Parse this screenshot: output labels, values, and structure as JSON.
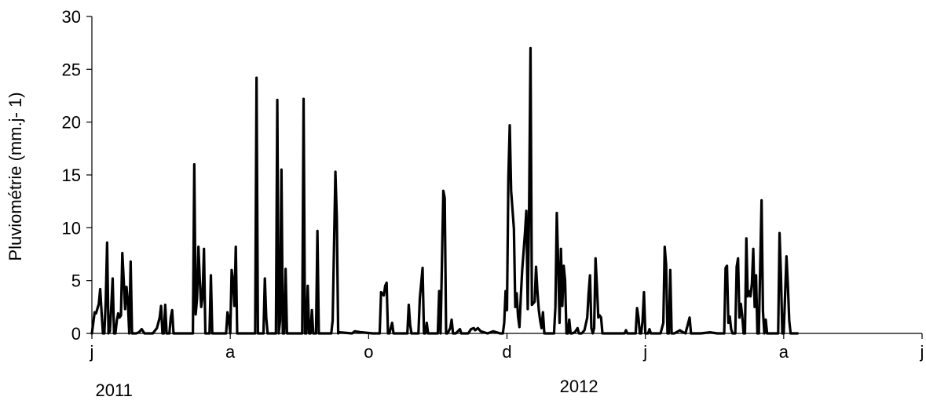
{
  "chart_data": {
    "type": "line",
    "title": "",
    "ylabel": "Pluviométrie (mm.j- 1)",
    "xlabel": "",
    "ylim": [
      0,
      30
    ],
    "yticks": [
      0,
      5,
      10,
      15,
      20,
      25,
      30
    ],
    "xlim": [
      0,
      600
    ],
    "x_ticks": [
      {
        "x": 0,
        "label": "j"
      },
      {
        "x": 100,
        "label": "a"
      },
      {
        "x": 200,
        "label": "o"
      },
      {
        "x": 300,
        "label": "d"
      },
      {
        "x": 400,
        "label": "j"
      },
      {
        "x": 500,
        "label": "a"
      },
      {
        "x": 600,
        "label": "j"
      }
    ],
    "year_labels": [
      {
        "x": 16,
        "label": "2011"
      },
      {
        "x": 352,
        "label": "2012"
      }
    ],
    "grid": false,
    "legend": "none",
    "line_color": "#000000",
    "series": [
      {
        "points": [
          [
            0,
            0
          ],
          [
            2,
            2
          ],
          [
            3,
            1.9
          ],
          [
            5,
            2.8
          ],
          [
            6,
            4.2
          ],
          [
            7,
            2
          ],
          [
            8,
            0
          ],
          [
            9,
            0
          ],
          [
            10,
            3
          ],
          [
            11,
            8.6
          ],
          [
            12,
            0
          ],
          [
            13,
            0.2
          ],
          [
            14,
            2.5
          ],
          [
            15,
            5.2
          ],
          [
            16,
            0
          ],
          [
            17,
            0
          ],
          [
            18,
            1.2
          ],
          [
            19,
            1.9
          ],
          [
            20,
            1.5
          ],
          [
            21,
            1.7
          ],
          [
            22,
            7.6
          ],
          [
            23,
            5
          ],
          [
            24,
            2.3
          ],
          [
            25,
            4.4
          ],
          [
            26,
            3
          ],
          [
            27,
            0
          ],
          [
            28,
            6.8
          ],
          [
            29,
            0
          ],
          [
            32,
            0
          ],
          [
            34,
            0.1
          ],
          [
            36,
            0.4
          ],
          [
            38,
            0
          ],
          [
            40,
            0
          ],
          [
            44,
            0
          ],
          [
            47,
            0.5
          ],
          [
            49,
            1.5
          ],
          [
            50,
            2.6
          ],
          [
            51,
            0
          ],
          [
            52,
            0
          ],
          [
            53,
            2.7
          ],
          [
            54,
            0
          ],
          [
            55,
            0
          ],
          [
            56,
            0
          ],
          [
            57,
            1.5
          ],
          [
            58,
            2.2
          ],
          [
            59,
            0
          ],
          [
            61,
            0
          ],
          [
            62,
            0
          ],
          [
            73,
            0
          ],
          [
            74,
            16
          ],
          [
            75,
            1.8
          ],
          [
            76,
            3.3
          ],
          [
            77,
            8.2
          ],
          [
            78,
            5
          ],
          [
            79,
            2.5
          ],
          [
            80,
            3.5
          ],
          [
            81,
            8
          ],
          [
            82,
            0
          ],
          [
            83,
            0
          ],
          [
            85,
            0
          ],
          [
            86,
            5.5
          ],
          [
            87,
            0
          ],
          [
            88,
            0
          ],
          [
            97,
            0
          ],
          [
            98,
            2
          ],
          [
            99,
            1.3
          ],
          [
            100,
            0
          ],
          [
            101,
            6
          ],
          [
            102,
            5
          ],
          [
            103,
            2.6
          ],
          [
            104,
            8.2
          ],
          [
            105,
            0
          ],
          [
            106,
            0
          ],
          [
            118,
            0
          ],
          [
            119,
            24.2
          ],
          [
            120,
            0
          ],
          [
            121,
            0
          ],
          [
            122,
            0
          ],
          [
            123,
            0
          ],
          [
            124,
            0
          ],
          [
            125,
            5.2
          ],
          [
            126,
            1.5
          ],
          [
            127,
            0
          ],
          [
            128,
            0
          ],
          [
            133,
            0
          ],
          [
            134,
            22.1
          ],
          [
            135,
            0
          ],
          [
            136,
            1.2
          ],
          [
            137,
            15.5
          ],
          [
            138,
            0
          ],
          [
            139,
            0
          ],
          [
            140,
            6.1
          ],
          [
            141,
            0
          ],
          [
            142,
            0
          ],
          [
            152,
            0
          ],
          [
            153,
            22.2
          ],
          [
            154,
            0
          ],
          [
            155,
            0
          ],
          [
            156,
            4.5
          ],
          [
            157,
            0
          ],
          [
            158,
            0
          ],
          [
            159,
            2.2
          ],
          [
            160,
            0
          ],
          [
            161,
            0
          ],
          [
            162,
            0
          ],
          [
            163,
            9.7
          ],
          [
            164,
            0
          ],
          [
            165,
            0
          ],
          [
            166,
            0
          ],
          [
            172,
            0
          ],
          [
            173,
            0
          ],
          [
            174,
            1.2
          ],
          [
            176,
            15.3
          ],
          [
            177,
            11
          ],
          [
            178,
            0
          ],
          [
            179,
            0.1
          ],
          [
            188,
            0
          ],
          [
            190,
            0.2
          ],
          [
            195,
            0.1
          ],
          [
            203,
            0
          ],
          [
            208,
            0
          ],
          [
            209,
            3.9
          ],
          [
            211,
            3.6
          ],
          [
            212,
            4.5
          ],
          [
            213,
            4.8
          ],
          [
            214,
            0
          ],
          [
            215,
            0
          ],
          [
            217,
            1
          ],
          [
            218,
            0
          ],
          [
            219,
            0
          ],
          [
            228,
            0
          ],
          [
            229,
            2.7
          ],
          [
            230,
            0.8
          ],
          [
            231,
            0
          ],
          [
            236,
            0
          ],
          [
            237,
            3.3
          ],
          [
            239,
            6.2
          ],
          [
            240,
            0
          ],
          [
            241,
            0
          ],
          [
            242,
            1
          ],
          [
            243,
            0
          ],
          [
            244,
            0
          ],
          [
            250,
            0
          ],
          [
            251,
            4
          ],
          [
            252,
            0
          ],
          [
            254,
            13.5
          ],
          [
            255,
            12.8
          ],
          [
            256,
            0
          ],
          [
            257,
            0
          ],
          [
            259,
            0.5
          ],
          [
            260,
            1.3
          ],
          [
            261,
            0
          ],
          [
            263,
            0
          ],
          [
            266,
            0.4
          ],
          [
            267,
            0
          ],
          [
            272,
            0
          ],
          [
            274,
            0.4
          ],
          [
            276,
            0.5
          ],
          [
            277,
            0.3
          ],
          [
            279,
            0.5
          ],
          [
            281,
            0.2
          ],
          [
            286,
            0
          ],
          [
            290,
            0.2
          ],
          [
            295,
            0
          ],
          [
            297,
            0
          ],
          [
            298,
            1
          ],
          [
            299,
            4
          ],
          [
            300,
            2.2
          ],
          [
            301,
            14.7
          ],
          [
            302,
            19.7
          ],
          [
            303,
            13.5
          ],
          [
            305,
            9.9
          ],
          [
            306,
            2.5
          ],
          [
            307,
            3.8
          ],
          [
            308,
            1.6
          ],
          [
            309,
            0.6
          ],
          [
            310,
            3.5
          ],
          [
            311,
            6
          ],
          [
            313,
            9.5
          ],
          [
            314,
            11.6
          ],
          [
            315,
            2.3
          ],
          [
            316,
            12
          ],
          [
            317,
            27
          ],
          [
            318,
            2.7
          ],
          [
            320,
            3
          ],
          [
            321,
            6.3
          ],
          [
            322,
            4
          ],
          [
            323,
            2.2
          ],
          [
            324,
            1.2
          ],
          [
            325,
            0.5
          ],
          [
            326,
            2
          ],
          [
            327,
            0
          ],
          [
            334,
            0
          ],
          [
            335,
            2.5
          ],
          [
            336,
            11.4
          ],
          [
            337,
            6.6
          ],
          [
            338,
            1
          ],
          [
            339,
            8
          ],
          [
            340,
            2.6
          ],
          [
            341,
            6.4
          ],
          [
            342,
            5
          ],
          [
            343,
            0
          ],
          [
            344,
            0
          ],
          [
            345,
            1.3
          ],
          [
            346,
            0
          ],
          [
            347,
            0
          ],
          [
            349,
            0.1
          ],
          [
            351,
            0.5
          ],
          [
            352,
            0
          ],
          [
            354,
            0
          ],
          [
            356,
            0.3
          ],
          [
            358,
            1.5
          ],
          [
            359,
            3.8
          ],
          [
            360,
            5.5
          ],
          [
            361,
            0.5
          ],
          [
            362,
            0
          ],
          [
            363,
            0.5
          ],
          [
            364,
            7.1
          ],
          [
            365,
            4.5
          ],
          [
            366,
            1.5
          ],
          [
            367,
            1.7
          ],
          [
            368,
            1.5
          ],
          [
            369,
            0
          ],
          [
            385,
            0
          ],
          [
            386,
            0.3
          ],
          [
            387,
            0
          ],
          [
            393,
            0
          ],
          [
            394,
            2.4
          ],
          [
            395,
            1.5
          ],
          [
            396,
            0
          ],
          [
            397,
            0
          ],
          [
            398,
            1.2
          ],
          [
            399,
            3.9
          ],
          [
            400,
            0
          ],
          [
            402,
            0
          ],
          [
            403,
            0.4
          ],
          [
            404,
            0
          ],
          [
            405,
            0
          ],
          [
            408,
            0
          ],
          [
            411,
            0
          ],
          [
            413,
            1
          ],
          [
            414,
            8.2
          ],
          [
            415,
            6.5
          ],
          [
            416,
            0
          ],
          [
            417,
            0
          ],
          [
            418,
            6
          ],
          [
            419,
            0
          ],
          [
            420,
            0
          ],
          [
            421,
            0
          ],
          [
            425,
            0.3
          ],
          [
            426,
            0.2
          ],
          [
            429,
            0
          ],
          [
            432,
            1.5
          ],
          [
            433,
            0
          ],
          [
            434,
            0
          ],
          [
            440,
            0
          ],
          [
            447,
            0.1
          ],
          [
            452,
            0
          ],
          [
            457,
            0
          ],
          [
            458,
            6.2
          ],
          [
            459,
            6.4
          ],
          [
            460,
            1
          ],
          [
            461,
            1.6
          ],
          [
            462,
            0.4
          ],
          [
            463,
            0
          ],
          [
            464,
            0
          ],
          [
            465,
            0
          ],
          [
            466,
            6.3
          ],
          [
            467,
            7.1
          ],
          [
            468,
            1.5
          ],
          [
            469,
            2.8
          ],
          [
            470,
            1.7
          ],
          [
            471,
            0
          ],
          [
            472,
            0
          ],
          [
            473,
            9
          ],
          [
            474,
            3.5
          ],
          [
            475,
            4
          ],
          [
            476,
            3.5
          ],
          [
            477,
            4.7
          ],
          [
            478,
            8
          ],
          [
            479,
            2.5
          ],
          [
            480,
            5.5
          ],
          [
            481,
            0
          ],
          [
            482,
            0
          ],
          [
            484,
            12.6
          ],
          [
            485,
            2.1
          ],
          [
            486,
            0
          ],
          [
            487,
            1.3
          ],
          [
            488,
            0
          ],
          [
            490,
            0
          ],
          [
            496,
            0
          ],
          [
            497,
            9.5
          ],
          [
            498,
            5.5
          ],
          [
            499,
            0
          ],
          [
            500,
            0
          ],
          [
            502,
            7.3
          ],
          [
            503,
            4.6
          ],
          [
            504,
            1.2
          ],
          [
            505,
            0
          ],
          [
            510,
            0
          ]
        ]
      }
    ]
  }
}
